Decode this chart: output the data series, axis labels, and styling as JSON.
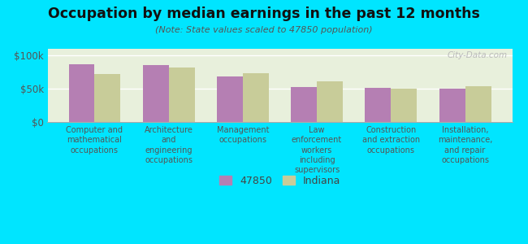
{
  "title": "Occupation by median earnings in the past 12 months",
  "subtitle": "(Note: State values scaled to 47850 population)",
  "categories": [
    "Computer and\nmathematical\noccupations",
    "Architecture\nand\nengineering\noccupations",
    "Management\noccupations",
    "Law\nenforcement\nworkers\nincluding\nsupervisors",
    "Construction\nand extraction\noccupations",
    "Installation,\nmaintenance,\nand repair\noccupations"
  ],
  "values_47850": [
    87000,
    85000,
    68000,
    52000,
    51000,
    50000
  ],
  "values_indiana": [
    72000,
    82000,
    73000,
    61000,
    50000,
    54000
  ],
  "color_47850": "#b57fb3",
  "color_indiana": "#c8cc99",
  "background_color": "#00e5ff",
  "plot_bg_color": "#e8f0dc",
  "ylim": [
    0,
    110000
  ],
  "yticks": [
    0,
    50000,
    100000
  ],
  "ytick_labels": [
    "$0",
    "$50k",
    "$100k"
  ],
  "legend_label_47850": "47850",
  "legend_label_indiana": "Indiana",
  "watermark": "City-Data.com"
}
